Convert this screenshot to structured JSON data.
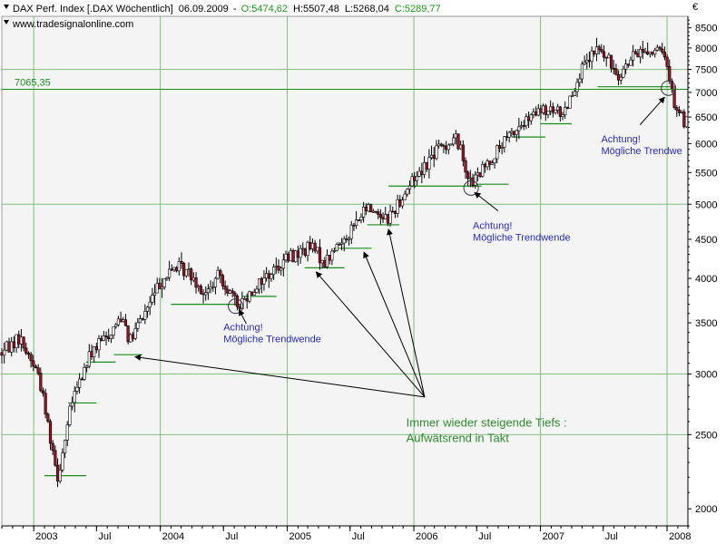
{
  "header": {
    "instrument": "DAX Perf. Index [.DAX  Wöchentlich]",
    "date": "06.09.2009",
    "open": "O:5474,62",
    "high": "H:5507,48",
    "low": "L:5268,04",
    "close": "C:5289,77",
    "source": "www.tradesignalonline.com",
    "open_color": "#1a9c1a",
    "close_color": "#1a9c1a"
  },
  "chart_data": {
    "type": "candlestick",
    "currency_symbol": "€",
    "y_scale": "log",
    "ylim": [
      1900,
      8800
    ],
    "y_ticks": [
      {
        "value": 2000,
        "label": "2000"
      },
      {
        "value": 2500,
        "label": "2500"
      },
      {
        "value": 3000,
        "label": "3000"
      },
      {
        "value": 3500,
        "label": "3500"
      },
      {
        "value": 4000,
        "label": "4000"
      },
      {
        "value": 4500,
        "label": "4500"
      },
      {
        "value": 5000,
        "label": "5000"
      },
      {
        "value": 5500,
        "label": "5500"
      },
      {
        "value": 6000,
        "label": "6000"
      },
      {
        "value": 6500,
        "label": "6500"
      },
      {
        "value": 7000,
        "label": "7000"
      },
      {
        "value": 7500,
        "label": "7500"
      },
      {
        "value": 8000,
        "label": "8000"
      },
      {
        "value": 8500,
        "label": "8500"
      }
    ],
    "xlim": [
      "2002-10-01",
      "2008-03-01"
    ],
    "x_ticks": [
      {
        "date": "2003-01-01",
        "label": "2003"
      },
      {
        "date": "2003-07-01",
        "label": "Jul"
      },
      {
        "date": "2004-01-01",
        "label": "2004"
      },
      {
        "date": "2004-07-01",
        "label": "Jul"
      },
      {
        "date": "2005-01-01",
        "label": "2005"
      },
      {
        "date": "2005-07-01",
        "label": "Jul"
      },
      {
        "date": "2006-01-01",
        "label": "2006"
      },
      {
        "date": "2006-07-01",
        "label": "Jul"
      },
      {
        "date": "2007-01-01",
        "label": "2007"
      },
      {
        "date": "2007-07-01",
        "label": "Jul"
      },
      {
        "date": "2008-01-01",
        "label": "2008"
      }
    ],
    "major_gridlines": [
      2500,
      3000,
      5000,
      7500
    ],
    "colors": {
      "up": "#ffffff",
      "down": "#a01020",
      "wick": "#000000",
      "support": "#1a8c1a",
      "grid": "#7fbf7f",
      "annotation": "#2a2ac8",
      "text_green": "#2e8b2e"
    },
    "price_line": {
      "value": 7065.35,
      "label": "7065,35"
    },
    "anchors": [
      {
        "date": "2002-10-01",
        "value": 3200
      },
      {
        "date": "2002-11-20",
        "value": 3350
      },
      {
        "date": "2003-01-15",
        "value": 3000
      },
      {
        "date": "2003-03-12",
        "value": 2200
      },
      {
        "date": "2003-04-20",
        "value": 2750
      },
      {
        "date": "2003-06-15",
        "value": 3200
      },
      {
        "date": "2003-08-10",
        "value": 3400
      },
      {
        "date": "2003-09-15",
        "value": 3600
      },
      {
        "date": "2003-10-05",
        "value": 3300
      },
      {
        "date": "2003-12-31",
        "value": 3950
      },
      {
        "date": "2004-02-15",
        "value": 4150
      },
      {
        "date": "2004-04-01",
        "value": 4050
      },
      {
        "date": "2004-05-10",
        "value": 3800
      },
      {
        "date": "2004-06-20",
        "value": 4050
      },
      {
        "date": "2004-08-10",
        "value": 3680
      },
      {
        "date": "2004-10-10",
        "value": 3950
      },
      {
        "date": "2004-12-31",
        "value": 4250
      },
      {
        "date": "2005-03-10",
        "value": 4400
      },
      {
        "date": "2005-04-20",
        "value": 4200
      },
      {
        "date": "2005-06-20",
        "value": 4550
      },
      {
        "date": "2005-08-20",
        "value": 4950
      },
      {
        "date": "2005-10-20",
        "value": 4800
      },
      {
        "date": "2005-12-31",
        "value": 5400
      },
      {
        "date": "2006-03-10",
        "value": 5900
      },
      {
        "date": "2006-05-05",
        "value": 6100
      },
      {
        "date": "2006-06-15",
        "value": 5300
      },
      {
        "date": "2006-08-20",
        "value": 5800
      },
      {
        "date": "2006-10-20",
        "value": 6250
      },
      {
        "date": "2006-12-31",
        "value": 6600
      },
      {
        "date": "2007-03-10",
        "value": 6600
      },
      {
        "date": "2007-04-20",
        "value": 7350
      },
      {
        "date": "2007-06-15",
        "value": 8000
      },
      {
        "date": "2007-08-15",
        "value": 7400
      },
      {
        "date": "2007-10-15",
        "value": 7950
      },
      {
        "date": "2007-12-10",
        "value": 7900
      },
      {
        "date": "2008-01-01",
        "value": 7650
      },
      {
        "date": "2008-01-20",
        "value": 6800
      },
      {
        "date": "2008-02-20",
        "value": 6400
      },
      {
        "date": "2008-03-01",
        "value": 6650
      }
    ],
    "support_lines": [
      {
        "start": "2003-02-01",
        "end": "2003-06-01",
        "value": 2210
      },
      {
        "start": "2003-04-10",
        "end": "2003-07-01",
        "value": 2750
      },
      {
        "start": "2003-06-01",
        "end": "2003-08-25",
        "value": 3110
      },
      {
        "start": "2003-08-20",
        "end": "2003-11-10",
        "value": 3180
      },
      {
        "start": "2004-02-01",
        "end": "2004-08-25",
        "value": 3700
      },
      {
        "start": "2004-08-25",
        "end": "2004-12-01",
        "value": 3790
      },
      {
        "start": "2005-02-20",
        "end": "2005-06-15",
        "value": 4130
      },
      {
        "start": "2005-05-15",
        "end": "2005-09-01",
        "value": 4380
      },
      {
        "start": "2005-08-20",
        "end": "2005-11-20",
        "value": 4700
      },
      {
        "start": "2005-10-20",
        "end": "2006-07-15",
        "value": 5280
      },
      {
        "start": "2006-06-25",
        "end": "2006-10-01",
        "value": 5310
      },
      {
        "start": "2006-10-10",
        "end": "2007-01-15",
        "value": 6120
      },
      {
        "start": "2007-01-01",
        "end": "2007-04-01",
        "value": 6370
      },
      {
        "start": "2007-06-15",
        "end": "2008-01-10",
        "value": 7120
      }
    ],
    "circles": [
      {
        "date": "2004-08-05",
        "value": 3680
      },
      {
        "date": "2006-06-15",
        "value": 5250
      },
      {
        "date": "2008-01-05",
        "value": 7090
      }
    ],
    "callouts": [
      {
        "line1": "Achtung!",
        "line2": "Mögliche Trendwende",
        "text_date": "2004-07-01",
        "text_value": 3420,
        "arrow_from": {
          "date": "2004-09-05",
          "value": 3490
        },
        "arrow_to": {
          "date": "2004-08-15",
          "value": 3640
        }
      },
      {
        "line1": "Achtung!",
        "line2": "Mögliche Trendwende",
        "text_date": "2006-06-20",
        "text_value": 4640,
        "arrow_from": {
          "date": "2006-09-01",
          "value": 4900
        },
        "arrow_to": {
          "date": "2006-06-25",
          "value": 5180
        }
      },
      {
        "line1": "Achtung!",
        "line2": "Mögliche Trendwe",
        "text_date": "2007-06-25",
        "text_value": 6020,
        "arrow_from": {
          "date": "2007-10-15",
          "value": 6350
        },
        "arrow_to": {
          "date": "2007-12-25",
          "value": 6900
        }
      }
    ],
    "fan_arrows": {
      "origin": {
        "date": "2006-02-01",
        "value": 2800
      },
      "targets": [
        {
          "date": "2003-10-20",
          "value": 3160
        },
        {
          "date": "2005-03-25",
          "value": 4080
        },
        {
          "date": "2005-08-10",
          "value": 4330
        },
        {
          "date": "2005-10-20",
          "value": 4640
        }
      ]
    },
    "text_note": {
      "line1": "Immer wieder steigende Tiefs :",
      "line2": "Aufwätsrend in Takt",
      "date": "2005-12-10",
      "value": 2560
    }
  }
}
